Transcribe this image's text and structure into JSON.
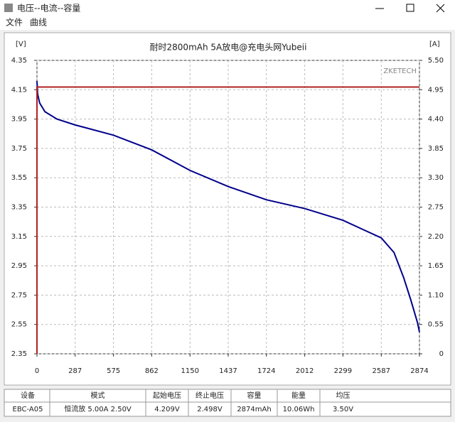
{
  "window": {
    "title": "电压--电流--容量",
    "menu": [
      "文件",
      "曲线"
    ]
  },
  "chart_data": {
    "type": "line",
    "title": "耐时2800mAh 5A放电@充电头网Yubeii",
    "brand": "ZKETECH",
    "ylabel": "[V]",
    "y2label": "[A]",
    "xlim": [
      0,
      2874
    ],
    "xticks": [
      0,
      287,
      575,
      862,
      1150,
      1437,
      1724,
      2012,
      2299,
      2587,
      2874
    ],
    "ylim": [
      2.35,
      4.35
    ],
    "yticks": [
      4.35,
      4.15,
      3.95,
      3.75,
      3.55,
      3.35,
      3.15,
      2.95,
      2.75,
      2.55,
      2.35
    ],
    "y2lim": [
      0,
      5.5
    ],
    "y2ticks": [
      {
        "value": 5.5,
        "label": "5.50"
      },
      {
        "value": 4.95,
        "label": "4.95"
      },
      {
        "value": 4.4,
        "label": "4.40"
      },
      {
        "value": 3.85,
        "label": "3.85"
      },
      {
        "value": 3.3,
        "label": "3.30"
      },
      {
        "value": 2.75,
        "label": "2.75"
      },
      {
        "value": 2.2,
        "label": "2.20"
      },
      {
        "value": 1.65,
        "label": "1.65"
      },
      {
        "value": 1.1,
        "label": "1.10"
      },
      {
        "value": 0.55,
        "label": "0.55"
      },
      0
    ],
    "grid": true,
    "series": [
      {
        "color": "#00008b",
        "x": [
          0,
          5,
          20,
          60,
          150,
          287,
          575,
          862,
          1150,
          1437,
          1724,
          2012,
          2299,
          2443,
          2587,
          2683,
          2755,
          2808,
          2860,
          2874
        ],
        "values": [
          4.209,
          4.12,
          4.06,
          4.0,
          3.95,
          3.91,
          3.84,
          3.74,
          3.6,
          3.49,
          3.4,
          3.34,
          3.26,
          3.2,
          3.14,
          3.04,
          2.87,
          2.72,
          2.56,
          2.498
        ]
      },
      {
        "color": "#b22222",
        "axis": "y2",
        "x": [
          0,
          0,
          2874
        ],
        "values": [
          0,
          5.0,
          5.0
        ]
      }
    ]
  },
  "table": {
    "header": [
      "设备",
      "模式",
      "起始电压",
      "终止电压",
      "容量",
      "能量",
      "均压"
    ],
    "rows": [
      [
        "EBC-A05",
        "恒流放 5.00A 2.50V",
        "4.209V",
        "2.498V",
        "2874mAh",
        "10.06Wh",
        "3.50V"
      ]
    ]
  }
}
